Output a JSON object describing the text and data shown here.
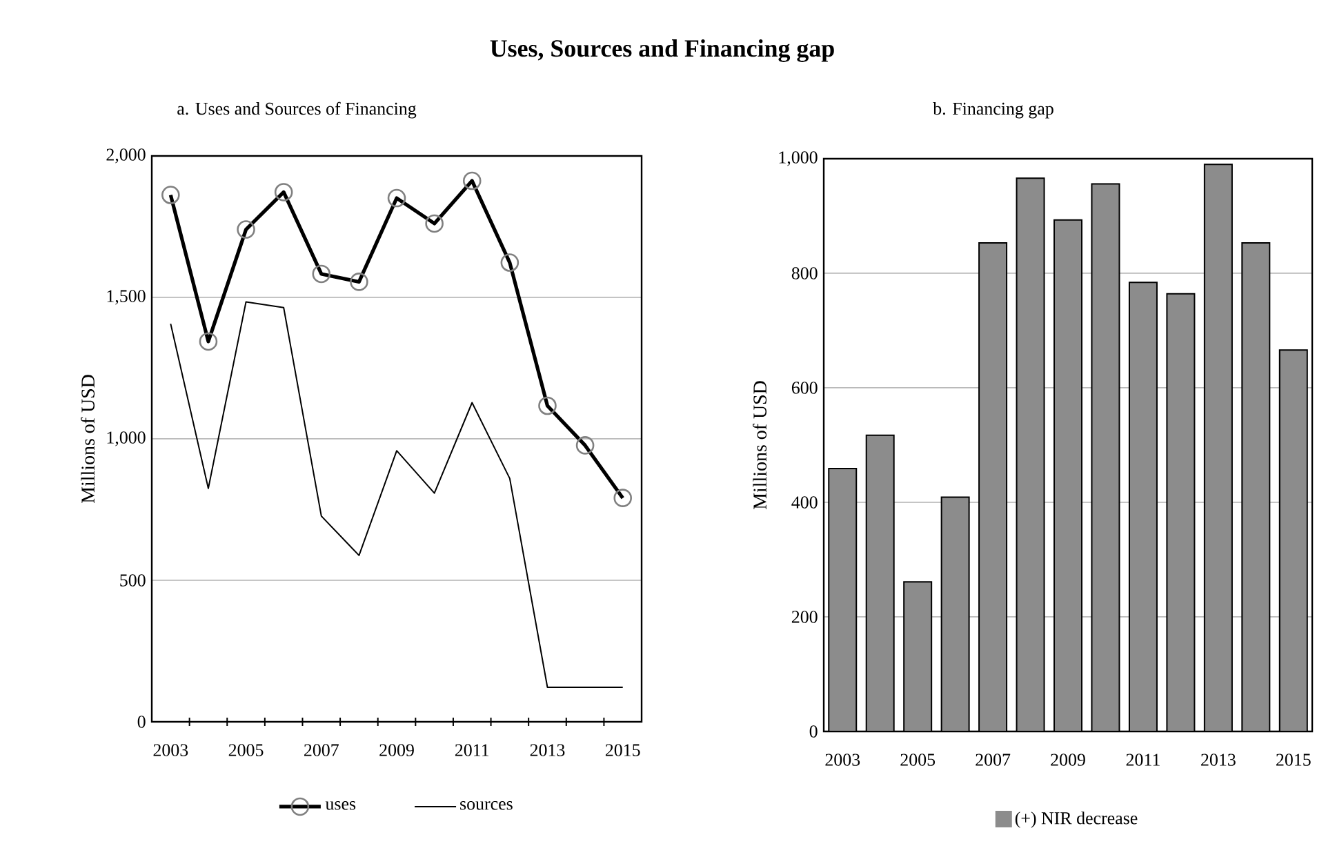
{
  "chart_data": [
    {
      "type": "line",
      "title": "Uses, Sources and Financing gap",
      "subtitle": "a. Uses and Sources of Financing",
      "ylabel": "Millions of USD",
      "categories": [
        "2003",
        null,
        "2005",
        null,
        "2007",
        null,
        "2009",
        null,
        "2011",
        null,
        "2013",
        null,
        "2015"
      ],
      "series": [
        {
          "name": "uses",
          "color": "#000000",
          "marker": "circle",
          "values": [
            1862,
            1344,
            1740,
            1872,
            1583,
            1555,
            1851,
            1761,
            1912,
            1623,
            1117,
            977,
            791
          ]
        },
        {
          "name": "sources",
          "color": "#000000",
          "marker": "none",
          "values": [
            1407,
            825,
            1484,
            1464,
            727,
            588,
            958,
            808,
            1128,
            860,
            122,
            122,
            122
          ]
        }
      ],
      "ylim": [
        0,
        2000
      ],
      "yticks": [
        0,
        500,
        {
          "value": 1000,
          "label": "1,000"
        },
        {
          "value": 1500,
          "label": "1,500"
        },
        {
          "value": 2000,
          "label": "2,000"
        }
      ],
      "grid": "y",
      "legend": "bottom"
    },
    {
      "type": "bar",
      "title": "b. Financing gap",
      "ylabel": "Millions of USD",
      "categories": [
        "2003",
        null,
        "2005",
        null,
        "2007",
        null,
        "2009",
        null,
        "2011",
        null,
        "2013",
        null,
        "2015"
      ],
      "series": [
        {
          "name": "(+) NIR decrease",
          "color": "#8c8c8c",
          "values": [
            459,
            517,
            261,
            409,
            853,
            966,
            893,
            956,
            784,
            764,
            990,
            853,
            666
          ]
        }
      ],
      "ylim": [
        0,
        1000
      ],
      "yticks": [
        0,
        200,
        400,
        600,
        800,
        {
          "value": 1000,
          "label": "1,000"
        }
      ],
      "grid": "y",
      "legend": "bottom"
    }
  ]
}
